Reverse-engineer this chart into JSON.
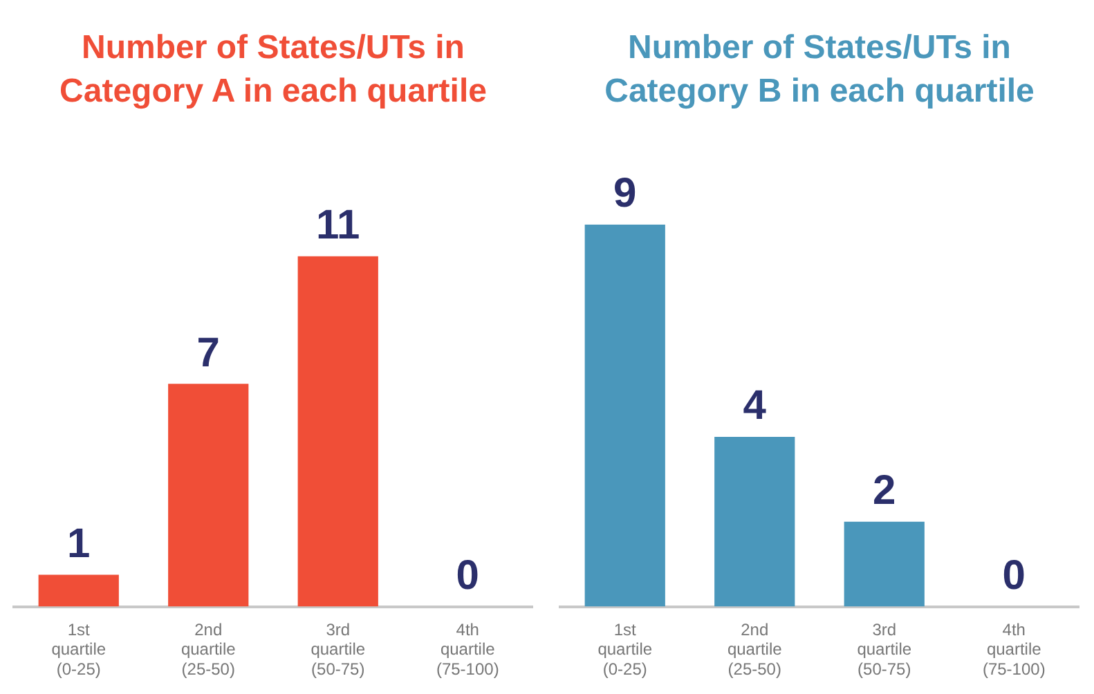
{
  "chart_data": [
    {
      "type": "bar",
      "title": "Number of States/UTs in\nCategory A in each quartile",
      "categories": [
        "1st\nquartile\n(0-25)",
        "2nd\nquartile\n(25-50)",
        "3rd\nquartile\n(50-75)",
        "4th\nquartile\n(75-100)"
      ],
      "values": [
        1,
        7,
        11,
        0
      ],
      "color": "#f04e37",
      "data_labels": true,
      "grid": false,
      "legend": false,
      "tick_labels": "x"
    },
    {
      "type": "bar",
      "title": "Number of States/UTs in\nCategory B in each quartile",
      "categories": [
        "1st\nquartile\n(0-25)",
        "2nd\nquartile\n(25-50)",
        "3rd\nquartile\n(50-75)",
        "4th\nquartile\n(75-100)"
      ],
      "values": [
        9,
        4,
        2,
        0
      ],
      "color": "#4a97bb",
      "data_labels": true,
      "grid": false,
      "legend": false,
      "tick_labels": "x"
    }
  ]
}
